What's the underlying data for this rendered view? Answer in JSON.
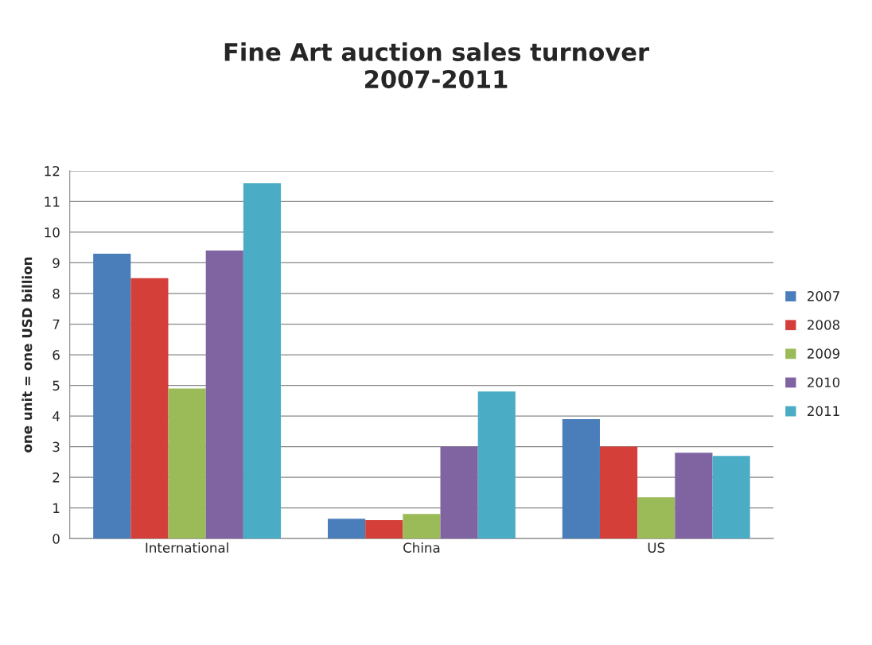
{
  "chart_data": {
    "type": "bar",
    "title": "Fine Art auction sales turnover\n2007-2011",
    "ylabel": "one unit = one USD billion",
    "categories": [
      "International",
      "China",
      "US"
    ],
    "series": [
      {
        "name": "2007",
        "color": "#4a7ebb",
        "values": [
          9.3,
          0.65,
          3.9
        ]
      },
      {
        "name": "2008",
        "color": "#d43f3a",
        "values": [
          8.5,
          0.6,
          3.0
        ]
      },
      {
        "name": "2009",
        "color": "#9bbb59",
        "values": [
          4.9,
          0.8,
          1.35
        ]
      },
      {
        "name": "2010",
        "color": "#8064a2",
        "values": [
          9.4,
          3.0,
          2.8
        ]
      },
      {
        "name": "2011",
        "color": "#4bacc6",
        "values": [
          11.6,
          4.8,
          2.7
        ]
      }
    ],
    "ylim": [
      0,
      12
    ],
    "yticks": [
      0,
      1,
      2,
      3,
      4,
      5,
      6,
      7,
      8,
      9,
      10,
      11,
      12
    ],
    "grid": "y",
    "legend": "right"
  }
}
